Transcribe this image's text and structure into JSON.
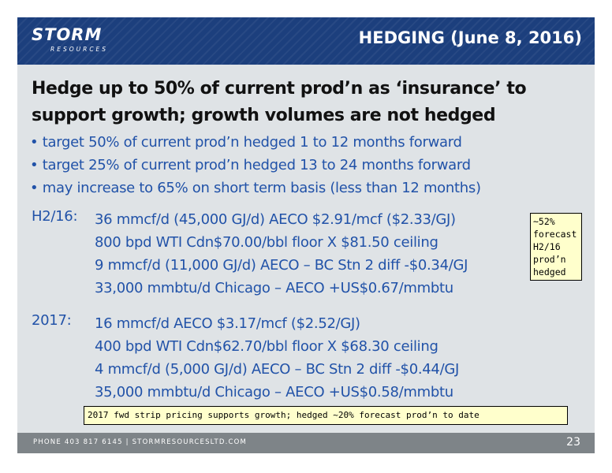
{
  "header": {
    "logo_word": "STORM",
    "logo_sub": "RESOURCES",
    "title": "HEDGING (June 8, 2016)"
  },
  "headline": "Hedge up to 50% of current prod’n as ‘insurance’ to support growth; growth volumes are not hedged",
  "bullets": [
    "• target 50% of current prod’n hedged 1 to 12 months forward",
    "• target 25% of current prod’n hedged 13 to 24 months forward",
    "• may increase to 65% on short term basis (less than 12 months)"
  ],
  "hedges": [
    {
      "period": "H2/16:",
      "lines": [
        "36 mmcf/d (45,000 GJ/d) AECO $2.91/mcf ($2.33/GJ)",
        "800 bpd WTI Cdn$70.00/bbl floor X $81.50 ceiling",
        "9 mmcf/d (11,000 GJ/d) AECO – BC Stn 2 diff -$0.34/GJ",
        "33,000 mmbtu/d Chicago – AECO +US$0.67/mmbtu"
      ]
    },
    {
      "period": "2017:",
      "lines": [
        "16 mmcf/d AECO $3.17/mcf ($2.52/GJ)",
        "400 bpd WTI Cdn$62.70/bbl floor X $68.30 ceiling",
        "4 mmcf/d (5,000 GJ/d) AECO – BC Stn 2 diff -$0.44/GJ",
        "35,000 mmbtu/d Chicago – AECO +US$0.58/mmbtu"
      ]
    }
  ],
  "note_box": [
    "~52%",
    "forecast",
    "H2/16",
    "prod’n",
    "hedged"
  ],
  "strip_note": "2017 fwd strip pricing supports growth; hedged ~20% forecast prod’n to date",
  "footer": {
    "contact": "PHONE 403 817 6145  |  STORMRESOURCESLTD.COM",
    "page_number": "23"
  },
  "colors": {
    "header_bg": "#1c3f7d",
    "body_text_blue": "#2152a8",
    "slide_bg": "#dfe3e6",
    "note_bg": "#ffffcc",
    "footer_bg": "#7e8488"
  }
}
